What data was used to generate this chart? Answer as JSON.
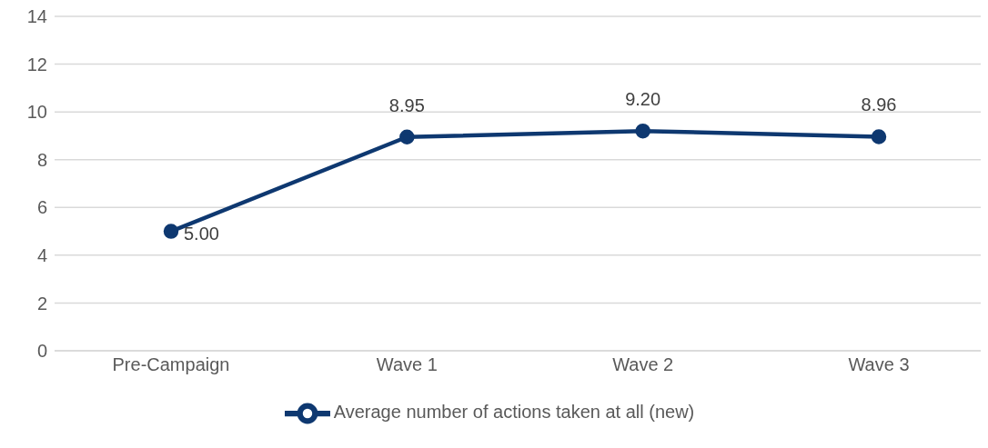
{
  "chart_data": {
    "type": "line",
    "categories": [
      "Pre-Campaign",
      "Wave 1",
      "Wave 2",
      "Wave 3"
    ],
    "series": [
      {
        "name": "Average number of actions taken at all (new)",
        "color": "#0e3870",
        "values": [
          5.0,
          8.95,
          9.2,
          8.96
        ],
        "value_labels": [
          "5.00",
          "8.95",
          "9.20",
          "8.96"
        ]
      }
    ],
    "ylim": [
      0,
      14
    ],
    "yticks": [
      0,
      2,
      4,
      6,
      8,
      10,
      12,
      14
    ],
    "grid": "y",
    "legend": "bottom",
    "marker": "circle",
    "line_style": "solid"
  }
}
